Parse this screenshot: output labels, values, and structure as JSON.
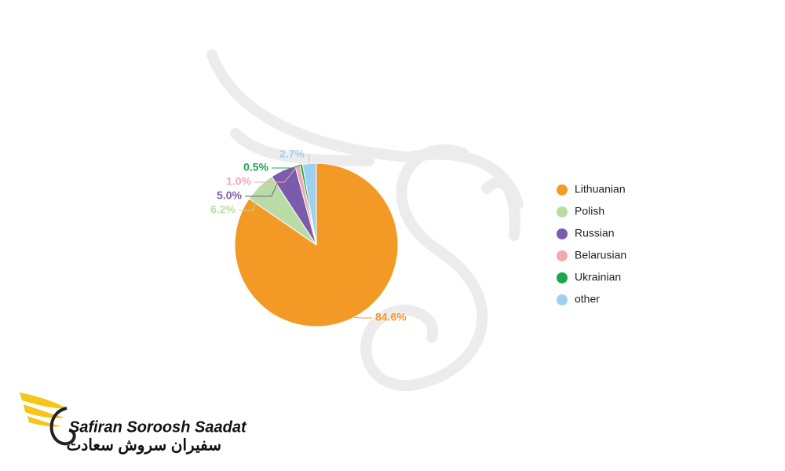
{
  "chart_data": {
    "type": "pie",
    "categories": [
      "Lithuanian",
      "Polish",
      "Russian",
      "Belarusian",
      "Ukrainian",
      "other"
    ],
    "values": [
      84.6,
      6.2,
      5.0,
      1.0,
      0.5,
      2.7
    ],
    "value_labels": [
      "84.6%",
      "6.2%",
      "5.0%",
      "1.0%",
      "0.5%",
      "2.7%"
    ],
    "colors": [
      "#f39a26",
      "#b8dca4",
      "#7b5bab",
      "#f2a9b0",
      "#1aa64b",
      "#9fd0ef"
    ],
    "legend": "right"
  },
  "logo": {
    "name": "Safiran Soroosh Saadat",
    "name_fa": "سفیران سروش سعادت"
  }
}
